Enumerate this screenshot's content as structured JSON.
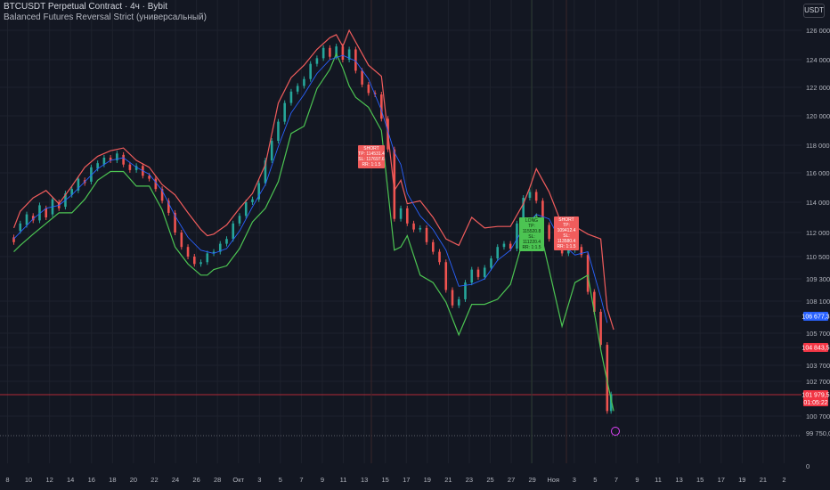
{
  "header": {
    "symbol_line": "BTCUSDT Perpetual Contract · 4ч · Bybit",
    "indicator_line": "Balanced Futures Reversal Strict (универсальный)"
  },
  "currency_button": "USDT",
  "colors": {
    "background": "#131722",
    "upper_band": "#f05c5c",
    "lower_band": "#4cc452",
    "ma_line": "#2962ff",
    "candle_up": "#26a69a",
    "candle_down": "#ef5350",
    "hline_red": "#b02a37",
    "hline_gray": "#5d606b",
    "price_tag_blue": "#2962ff",
    "price_tag_red": "#f23645"
  },
  "chart_data": {
    "type": "candlestick",
    "y_ticks": [
      "126 000,0",
      "124 000,0",
      "122 000,0",
      "120 000,0",
      "118 000,0",
      "116 000,0",
      "114 000,0",
      "112 000,0",
      "110 500,0",
      "109 300,0",
      "108 100,0",
      "106 677,3",
      "105 700,0",
      "104 843,5",
      "103 700,0",
      "102 700,0",
      "101 979,5",
      "100 700,0",
      "99 750,0",
      "0"
    ],
    "x_ticks": [
      "8",
      "10",
      "12",
      "14",
      "16",
      "18",
      "20",
      "22",
      "24",
      "26",
      "28",
      "Окт",
      "3",
      "5",
      "7",
      "9",
      "11",
      "13",
      "15",
      "17",
      "19",
      "21",
      "23",
      "25",
      "27",
      "29",
      "Ноя",
      "3",
      "5",
      "7",
      "9",
      "11",
      "13",
      "15",
      "17",
      "19",
      "21",
      "2"
    ],
    "price_tags": [
      {
        "value": "106 677,3",
        "color": "blue"
      },
      {
        "value": "104 843,5",
        "color": "red"
      },
      {
        "value": "101 979,5",
        "color": "red",
        "sub": "01:05:22"
      }
    ],
    "upper_band": [
      [
        0,
        112.3
      ],
      [
        0.5,
        113.4
      ],
      [
        1.5,
        114.3
      ],
      [
        2.5,
        114.8
      ],
      [
        3.5,
        113.9
      ],
      [
        4.5,
        115.1
      ],
      [
        5.5,
        116.4
      ],
      [
        6.5,
        117.2
      ],
      [
        7.5,
        117.6
      ],
      [
        8.5,
        117.8
      ],
      [
        9.5,
        116.9
      ],
      [
        10.5,
        116.4
      ],
      [
        11.5,
        115.2
      ],
      [
        12.5,
        114.5
      ],
      [
        13.5,
        113.3
      ],
      [
        14.5,
        112.2
      ],
      [
        15,
        111.8
      ],
      [
        15.5,
        111.9
      ],
      [
        16.5,
        112.5
      ],
      [
        17.5,
        113.6
      ],
      [
        18.5,
        114.6
      ],
      [
        19.5,
        116.6
      ],
      [
        20.5,
        120.9
      ],
      [
        21.5,
        122.7
      ],
      [
        22.5,
        123.6
      ],
      [
        23.5,
        124.7
      ],
      [
        24.5,
        125.5
      ],
      [
        25,
        125.7
      ],
      [
        25.5,
        124.9
      ],
      [
        26,
        126.0
      ],
      [
        26.5,
        125.2
      ],
      [
        27.5,
        123.6
      ],
      [
        28.5,
        122.8
      ],
      [
        29.5,
        114.8
      ],
      [
        30,
        115.5
      ],
      [
        30.5,
        113.9
      ],
      [
        31.5,
        114.1
      ],
      [
        32.5,
        113.0
      ],
      [
        33.5,
        111.6
      ],
      [
        34.5,
        111.2
      ],
      [
        35.5,
        113.0
      ],
      [
        36.5,
        112.3
      ],
      [
        37.5,
        112.4
      ],
      [
        38.5,
        112.4
      ],
      [
        39.5,
        113.9
      ],
      [
        40,
        115.0
      ],
      [
        40.5,
        116.3
      ],
      [
        41.5,
        114.7
      ],
      [
        42.5,
        112.5
      ],
      [
        43.5,
        112.4
      ],
      [
        44.5,
        111.9
      ],
      [
        45.5,
        111.6
      ],
      [
        46,
        107.4
      ],
      [
        46.5,
        105.9
      ]
    ],
    "lower_band": [
      [
        0,
        110.8
      ],
      [
        0.5,
        111.2
      ],
      [
        1.5,
        111.9
      ],
      [
        2.5,
        112.6
      ],
      [
        3.5,
        113.3
      ],
      [
        4.5,
        113.3
      ],
      [
        5.5,
        114.2
      ],
      [
        6.5,
        115.5
      ],
      [
        7.5,
        116.1
      ],
      [
        8.5,
        116.1
      ],
      [
        9.5,
        115.1
      ],
      [
        10.5,
        115.1
      ],
      [
        11.5,
        113.5
      ],
      [
        12.5,
        111.1
      ],
      [
        13.5,
        110.1
      ],
      [
        14.5,
        109.5
      ],
      [
        15,
        109.5
      ],
      [
        15.5,
        109.8
      ],
      [
        16.5,
        110.0
      ],
      [
        17.5,
        111.0
      ],
      [
        18.5,
        112.7
      ],
      [
        19.5,
        113.6
      ],
      [
        20.5,
        115.4
      ],
      [
        21.5,
        118.8
      ],
      [
        22.5,
        119.3
      ],
      [
        23.5,
        121.9
      ],
      [
        24.5,
        123.3
      ],
      [
        25,
        124.4
      ],
      [
        25.5,
        123.4
      ],
      [
        26,
        122.1
      ],
      [
        26.5,
        121.3
      ],
      [
        27.5,
        120.6
      ],
      [
        28.5,
        119.0
      ],
      [
        29.5,
        110.9
      ],
      [
        30,
        111.1
      ],
      [
        30.5,
        111.8
      ],
      [
        31.5,
        109.5
      ],
      [
        32.5,
        109.1
      ],
      [
        33.5,
        108.0
      ],
      [
        34.5,
        105.6
      ],
      [
        35.5,
        107.8
      ],
      [
        36.5,
        107.8
      ],
      [
        37.5,
        108.2
      ],
      [
        38.5,
        109.0
      ],
      [
        39.5,
        111.6
      ],
      [
        40,
        112.4
      ],
      [
        40.5,
        113.2
      ],
      [
        41.5,
        109.8
      ],
      [
        42.5,
        106.1
      ],
      [
        43.5,
        109.1
      ],
      [
        44.5,
        109.5
      ],
      [
        45.5,
        104.7
      ],
      [
        46,
        102.7
      ],
      [
        46.5,
        101.0
      ]
    ],
    "ma_line": [
      [
        0,
        111.6
      ],
      [
        1.5,
        112.9
      ],
      [
        2.5,
        113.6
      ],
      [
        3.5,
        113.8
      ],
      [
        4.5,
        114.5
      ],
      [
        5.5,
        115.4
      ],
      [
        6.5,
        116.3
      ],
      [
        7.5,
        116.9
      ],
      [
        8.5,
        117.1
      ],
      [
        9.5,
        116.4
      ],
      [
        10.5,
        115.9
      ],
      [
        11.5,
        114.8
      ],
      [
        12.5,
        113.1
      ],
      [
        13.5,
        111.7
      ],
      [
        14.5,
        110.9
      ],
      [
        15.5,
        110.7
      ],
      [
        16.5,
        111.0
      ],
      [
        17.5,
        112.1
      ],
      [
        18.5,
        113.7
      ],
      [
        19.5,
        115.2
      ],
      [
        20.5,
        117.9
      ],
      [
        21.5,
        120.2
      ],
      [
        22.5,
        121.5
      ],
      [
        23.5,
        123.0
      ],
      [
        24.5,
        124.0
      ],
      [
        25.5,
        124.3
      ],
      [
        26.5,
        123.9
      ],
      [
        27.5,
        122.6
      ],
      [
        28.5,
        120.4
      ],
      [
        29.5,
        117.5
      ],
      [
        30,
        116.6
      ],
      [
        30.5,
        114.6
      ],
      [
        31.5,
        113.1
      ],
      [
        32.5,
        112.2
      ],
      [
        33.5,
        110.9
      ],
      [
        34.5,
        108.9
      ],
      [
        35.5,
        109.0
      ],
      [
        36.5,
        109.3
      ],
      [
        37.5,
        110.3
      ],
      [
        38.5,
        110.9
      ],
      [
        39.5,
        112.3
      ],
      [
        40.5,
        113.2
      ],
      [
        41.5,
        112.9
      ],
      [
        42.5,
        111.3
      ],
      [
        43.5,
        110.6
      ],
      [
        44.5,
        110.8
      ],
      [
        45.5,
        108.3
      ],
      [
        46,
        106.3
      ]
    ],
    "candles": [
      [
        0,
        111.7,
        111.4
      ],
      [
        0.5,
        112.1,
        112.6
      ],
      [
        1,
        112.5,
        113.2
      ],
      [
        1.5,
        113.1,
        112.8
      ],
      [
        2,
        112.8,
        113.8
      ],
      [
        2.5,
        113.6,
        113.0
      ],
      [
        3,
        113.2,
        114.2
      ],
      [
        3.5,
        114.0,
        113.6
      ],
      [
        4,
        113.7,
        114.6
      ],
      [
        4.5,
        114.5,
        114.9
      ],
      [
        5,
        114.8,
        115.6
      ],
      [
        5.5,
        115.5,
        115.3
      ],
      [
        6,
        115.4,
        116.4
      ],
      [
        6.5,
        116.3,
        116.7
      ],
      [
        7,
        116.6,
        117.1
      ],
      [
        7.5,
        117.1,
        116.9
      ],
      [
        8,
        116.9,
        117.4
      ],
      [
        8.5,
        117.3,
        116.6
      ],
      [
        9,
        116.6,
        116.2
      ],
      [
        9.5,
        116.2,
        116.5
      ],
      [
        10,
        116.5,
        115.8
      ],
      [
        10.5,
        115.8,
        115.6
      ],
      [
        11,
        115.6,
        114.9
      ],
      [
        11.5,
        114.9,
        114.1
      ],
      [
        12,
        114.1,
        113.3
      ],
      [
        12.5,
        113.3,
        112.0
      ],
      [
        13,
        112.0,
        111.1
      ],
      [
        13.5,
        111.1,
        110.5
      ],
      [
        14,
        110.5,
        110.1
      ],
      [
        14.5,
        110.1,
        110.2
      ],
      [
        15,
        110.2,
        110.7
      ],
      [
        15.5,
        110.7,
        110.8
      ],
      [
        16,
        110.8,
        111.3
      ],
      [
        16.5,
        111.3,
        111.6
      ],
      [
        17,
        111.6,
        112.6
      ],
      [
        17.5,
        112.6,
        113.1
      ],
      [
        18,
        113.1,
        114.0
      ],
      [
        18.5,
        114.0,
        114.2
      ],
      [
        19,
        114.2,
        115.3
      ],
      [
        19.5,
        115.3,
        116.9
      ],
      [
        20,
        116.9,
        118.3
      ],
      [
        20.5,
        118.3,
        119.6
      ],
      [
        21,
        119.6,
        120.9
      ],
      [
        21.5,
        120.9,
        121.7
      ],
      [
        22,
        121.7,
        122.1
      ],
      [
        22.5,
        122.1,
        122.6
      ],
      [
        23,
        122.6,
        123.7
      ],
      [
        23.5,
        123.7,
        124.1
      ],
      [
        24,
        124.1,
        124.8
      ],
      [
        24.5,
        124.8,
        124.2
      ],
      [
        25,
        124.2,
        124.9
      ],
      [
        25.5,
        124.9,
        124.0
      ],
      [
        26,
        124.0,
        124.7
      ],
      [
        26.5,
        124.7,
        123.2
      ],
      [
        27,
        123.2,
        122.2
      ],
      [
        27.5,
        122.2,
        121.6
      ],
      [
        28,
        121.6,
        121.5
      ],
      [
        28.5,
        121.5,
        119.8
      ],
      [
        29,
        119.8,
        117.7
      ],
      [
        29.5,
        117.7,
        112.9
      ],
      [
        30,
        112.9,
        113.6
      ],
      [
        30.5,
        113.6,
        112.6
      ],
      [
        31,
        112.6,
        112.2
      ],
      [
        31.5,
        112.2,
        112.3
      ],
      [
        32,
        112.3,
        111.4
      ],
      [
        32.5,
        111.4,
        110.8
      ],
      [
        33,
        110.8,
        110.2
      ],
      [
        33.5,
        110.2,
        108.7
      ],
      [
        34,
        108.7,
        107.7
      ],
      [
        34.5,
        107.7,
        108.2
      ],
      [
        35,
        108.2,
        109.1
      ],
      [
        35.5,
        109.1,
        109.8
      ],
      [
        36,
        109.8,
        109.4
      ],
      [
        36.5,
        109.4,
        109.9
      ],
      [
        37,
        109.9,
        110.4
      ],
      [
        37.5,
        110.4,
        111.1
      ],
      [
        38,
        111.1,
        111.3
      ],
      [
        38.5,
        111.3,
        111.0
      ],
      [
        39,
        111.0,
        112.6
      ],
      [
        39.5,
        112.6,
        114.3
      ],
      [
        40,
        114.3,
        114.7
      ],
      [
        40.5,
        114.7,
        114.1
      ],
      [
        41,
        114.1,
        112.5
      ],
      [
        41.5,
        112.5,
        111.6
      ],
      [
        42,
        111.6,
        111.8
      ],
      [
        42.5,
        111.8,
        110.7
      ],
      [
        43,
        110.7,
        110.9
      ],
      [
        43.5,
        110.9,
        111.1
      ],
      [
        44,
        111.1,
        110.6
      ],
      [
        44.5,
        110.6,
        108.6
      ],
      [
        45,
        108.6,
        107.1
      ],
      [
        45.5,
        107.1,
        105.0
      ],
      [
        46,
        105.0,
        101.0
      ],
      [
        46.3,
        101.0,
        102.0
      ]
    ],
    "signals": [
      {
        "type": "short",
        "x": 28.9,
        "y": 117.3,
        "lines": [
          "SHORT",
          "TP: 114531.4",
          "SL: 117697.6",
          "RR: 1:1.5"
        ]
      },
      {
        "type": "long",
        "x": 40.4,
        "y": 112.3,
        "lines": [
          "LONG",
          "TP: 115520.8",
          "SL: 111220.4",
          "RR: 1:1.5"
        ]
      },
      {
        "type": "short",
        "x": 43.0,
        "y": 112.1,
        "lines": [
          "SHORT",
          "TP: 109412.4",
          "SL: 113580.4",
          "RR: 1:1.5"
        ]
      }
    ],
    "hlines": [
      {
        "value": 101979.5,
        "color": "red"
      },
      {
        "value": 99750,
        "color": "gray"
      }
    ],
    "vlines": [
      "Окт 11",
      "Окт 29",
      "Ноя 1"
    ]
  }
}
